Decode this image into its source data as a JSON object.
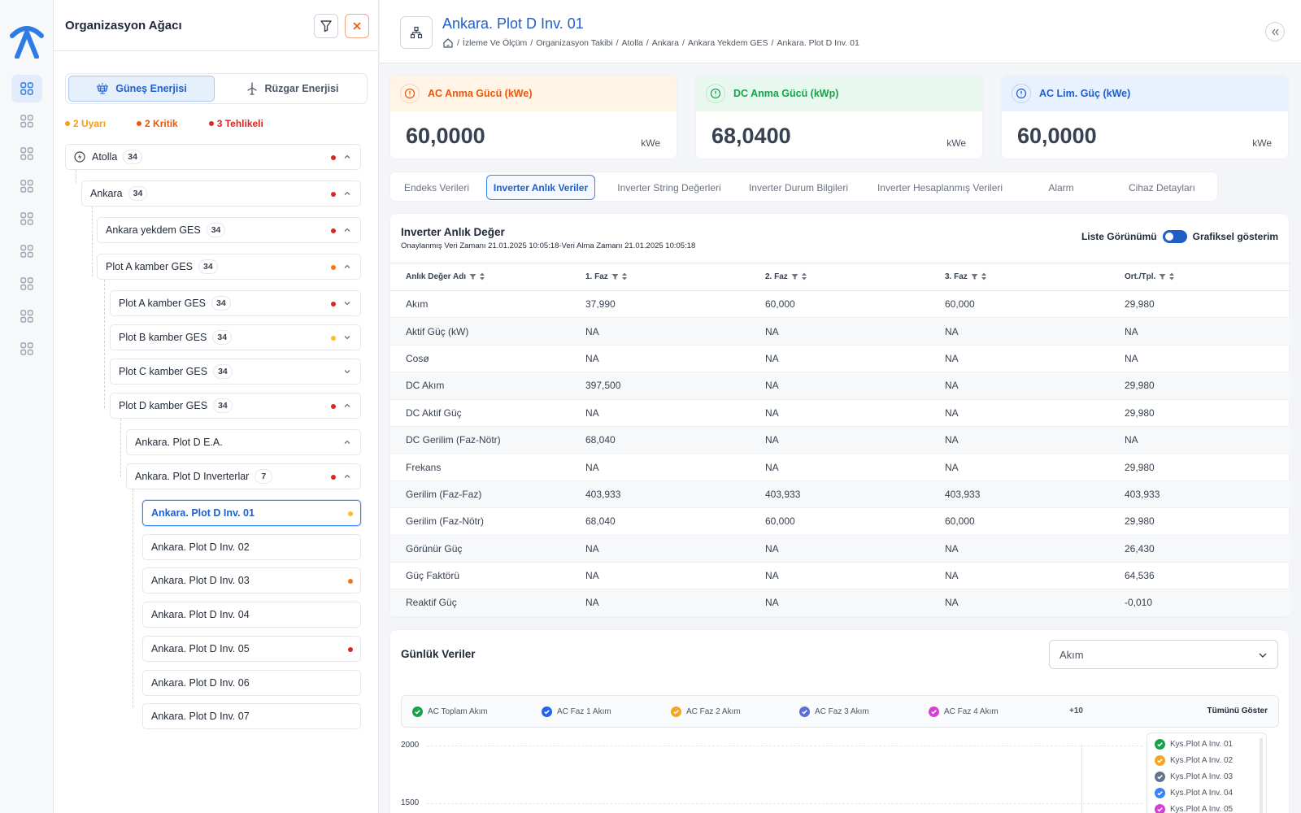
{
  "tree": {
    "title": "Organizasyon Ağacı",
    "energy_tabs": [
      "Güneş Enerjisi",
      "Rüzgar Enerjisi"
    ],
    "alerts": [
      {
        "label": "2 Uyarı",
        "color": "#f59e0b"
      },
      {
        "label": "2 Kritik",
        "color": "#ea580c"
      },
      {
        "label": "3 Tehlikeli",
        "color": "#dc2626"
      }
    ],
    "nodes": [
      {
        "label": "Atolla",
        "count": "34",
        "status": "#dc2626",
        "chev": "up"
      },
      {
        "label": "Ankara",
        "count": "34",
        "status": "#dc2626",
        "chev": "up"
      },
      {
        "label": "Ankara yekdem GES",
        "count": "34",
        "status": "#dc2626",
        "chev": "up"
      },
      {
        "label": "Plot A kamber GES",
        "count": "34",
        "status": "#f97316",
        "chev": "up"
      },
      {
        "label": "Plot A kamber GES",
        "count": "34",
        "status": "#dc2626",
        "chev": "down"
      },
      {
        "label": "Plot B kamber GES",
        "count": "34",
        "status": "#fbbf24",
        "chev": "down"
      },
      {
        "label": "Plot C kamber GES",
        "count": "34",
        "status": "",
        "chev": "down"
      },
      {
        "label": "Plot D kamber GES",
        "count": "34",
        "status": "#dc2626",
        "chev": "up"
      },
      {
        "label": "Ankara. Plot D E.A.",
        "count": "",
        "status": "",
        "chev": "up"
      },
      {
        "label": "Ankara. Plot D Inverterlar",
        "count": "7",
        "status": "#dc2626",
        "chev": "up"
      }
    ],
    "leaves": [
      {
        "label": "Ankara. Plot D Inv. 01",
        "status": "#fbbf24"
      },
      {
        "label": "Ankara. Plot D Inv. 02",
        "status": ""
      },
      {
        "label": "Ankara. Plot D Inv. 03",
        "status": "#f97316"
      },
      {
        "label": "Ankara. Plot D Inv. 04",
        "status": ""
      },
      {
        "label": "Ankara. Plot D Inv. 05",
        "status": "#dc2626"
      },
      {
        "label": "Ankara. Plot D Inv. 06",
        "status": ""
      },
      {
        "label": "Ankara. Plot D Inv. 07",
        "status": ""
      }
    ]
  },
  "header": {
    "title": "Ankara. Plot D Inv. 01",
    "breadcrumb": [
      "İzleme Ve Ölçüm",
      "Organizasyon Takibi",
      "Atolla",
      "Ankara",
      "Ankara Yekdem GES",
      "Ankara. Plot D Inv. 01"
    ]
  },
  "kpis": [
    {
      "label": "AC Anma Gücü (kWe)",
      "value": "60,0000",
      "unit": "kWe",
      "color": "#ea580c",
      "bg": "#fff4e6"
    },
    {
      "label": "DC Anma Gücü (kWp)",
      "value": "68,0400",
      "unit": "kWe",
      "color": "#16a34a",
      "bg": "#e9f8ef"
    },
    {
      "label": "AC Lim. Güç (kWe)",
      "value": "60,0000",
      "unit": "kWe",
      "color": "#1f5fc8",
      "bg": "#e8f1fd"
    }
  ],
  "tabs": [
    "Endeks Verileri",
    "Inverter Anlık Veriler",
    "Inverter String Değerleri",
    "Inverter Durum Bilgileri",
    "Inverter Hesaplanmış Verileri",
    "Alarm",
    "Cihaz Detayları"
  ],
  "instant": {
    "title": "Inverter Anlık Değer",
    "subtitle": "Onaylanmış Veri Zamanı 21.01.2025 10:05:18-Veri Alma Zamanı 21.01.2025 10:05:18",
    "toggle_left": "Liste Görünümü",
    "toggle_right": "Grafiksel gösterim",
    "columns": [
      "Anlık Değer Adı",
      "1. Faz",
      "2. Faz",
      "3. Faz",
      "Ort./Tpl."
    ],
    "rows": [
      [
        "Akım",
        "37,990",
        "60,000",
        "60,000",
        "29,980"
      ],
      [
        "Aktif Güç (kW)",
        "NA",
        "NA",
        "NA",
        "NA"
      ],
      [
        "Cosø",
        "NA",
        "NA",
        "NA",
        "NA"
      ],
      [
        "DC Akım",
        "397,500",
        "NA",
        "NA",
        "29,980"
      ],
      [
        "DC Aktif Güç",
        "NA",
        "NA",
        "NA",
        "29,980"
      ],
      [
        "DC Gerilim (Faz-Nötr)",
        "68,040",
        "NA",
        "NA",
        "NA"
      ],
      [
        "Frekans",
        "NA",
        "NA",
        "NA",
        "29,980"
      ],
      [
        "Gerilim (Faz-Faz)",
        "403,933",
        "403,933",
        "403,933",
        "403,933"
      ],
      [
        "Gerilim (Faz-Nötr)",
        "68,040",
        "60,000",
        "60,000",
        "29,980"
      ],
      [
        "Görünür Güç",
        "NA",
        "NA",
        "NA",
        "26,430"
      ],
      [
        "Güç Faktörü",
        "NA",
        "NA",
        "NA",
        "64,536"
      ],
      [
        "Reaktif Güç",
        "NA",
        "NA",
        "NA",
        "-0,010"
      ]
    ]
  },
  "daily": {
    "title": "Günlük Veriler",
    "select_value": "Akım",
    "legend": [
      {
        "label": "AC Toplam Akım",
        "color": "#16a34a"
      },
      {
        "label": "AC Faz 1 Akım",
        "color": "#2563eb"
      },
      {
        "label": "AC Faz 2 Akım",
        "color": "#f5a524"
      },
      {
        "label": "AC Faz 3 Akım",
        "color": "#5b6fd6"
      },
      {
        "label": "AC Faz 4 Akım",
        "color": "#d63fd6"
      }
    ],
    "more": "+10",
    "show_all": "Tümünü Göster",
    "side_legend": [
      {
        "label": "Kys.Plot A Inv. 01",
        "color": "#16a34a"
      },
      {
        "label": "Kys.Plot A Inv. 02",
        "color": "#f5a524"
      },
      {
        "label": "Kys.Plot A Inv. 03",
        "color": "#64748b"
      },
      {
        "label": "Kys.Plot A Inv. 04",
        "color": "#3b82f6"
      },
      {
        "label": "Kys.Plot A Inv. 05",
        "color": "#d63fd6"
      }
    ],
    "yticks": [
      "2000",
      "1500"
    ]
  }
}
